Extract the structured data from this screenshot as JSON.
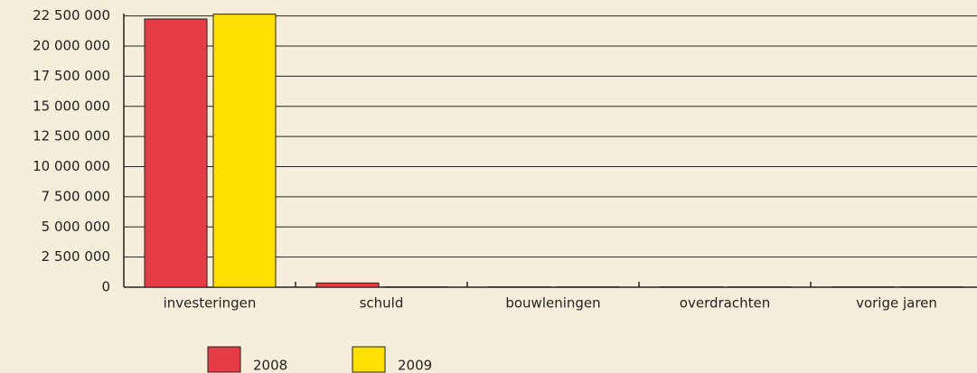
{
  "chart_data": {
    "type": "bar",
    "categories": [
      "investeringen",
      "schuld",
      "bouwleningen",
      "overdrachten",
      "vorige jaren"
    ],
    "series": [
      {
        "name": "2008",
        "color": "#e63c46",
        "values": [
          22250000,
          350000,
          30000,
          30000,
          30000
        ]
      },
      {
        "name": "2009",
        "color": "#ffe000",
        "values": [
          22650000,
          30000,
          30000,
          30000,
          30000
        ]
      }
    ],
    "ylim": [
      0,
      22700000
    ],
    "yticks": [
      0,
      {
        "value": 2500000,
        "label": "2 500 000"
      },
      {
        "value": 5000000,
        "label": "5 000 000"
      },
      {
        "value": 7500000,
        "label": "7 500 000"
      },
      {
        "value": 10000000,
        "label": "10 000 000"
      },
      {
        "value": 12500000,
        "label": "12 500 000"
      },
      {
        "value": 15000000,
        "label": "15 000 000"
      },
      {
        "value": 17500000,
        "label": "17 500 000"
      },
      {
        "value": 20000000,
        "label": "20 000 000"
      },
      {
        "value": 22500000,
        "label": "22 500 000"
      }
    ],
    "grid": true
  }
}
